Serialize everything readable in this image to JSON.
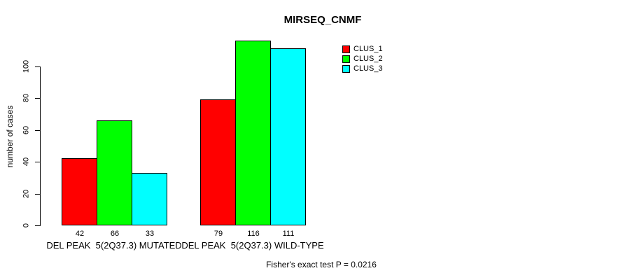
{
  "chart_data": {
    "type": "bar",
    "title": "MIRSEQ_CNMF",
    "ylabel": "number of cases",
    "xlabel": "",
    "ylim": [
      0,
      100
    ],
    "yticks": [
      0,
      20,
      40,
      60,
      80,
      100
    ],
    "grid": false,
    "legend_position": "top-right",
    "categories": [
      "DEL PEAK  5(2Q37.3) MUTATED",
      "DEL PEAK  5(2Q37.3) WILD-TYPE"
    ],
    "series": [
      {
        "name": "CLUS_1",
        "color": "#ff0000",
        "values": [
          42,
          79
        ]
      },
      {
        "name": "CLUS_2",
        "color": "#00ff00",
        "values": [
          66,
          116
        ]
      },
      {
        "name": "CLUS_3",
        "color": "#00ffff",
        "values": [
          33,
          111
        ]
      }
    ],
    "bar_border_color": "#000000",
    "background_color": "#ffffff",
    "annotation": "Fisher's exact test P = 0.0216"
  }
}
